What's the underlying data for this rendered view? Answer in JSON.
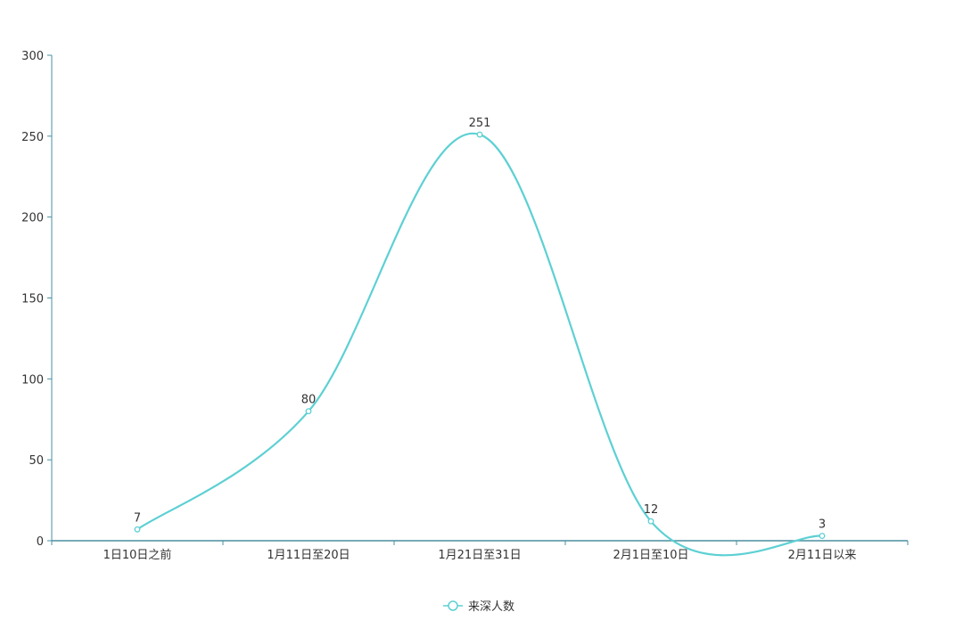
{
  "chart_data": {
    "type": "line",
    "smooth": true,
    "categories": [
      "1日10日之前",
      "1月11日至20日",
      "1月21日至31日",
      "2月1日至10日",
      "2月11日以来"
    ],
    "series": [
      {
        "name": "来深人数",
        "values": [
          7,
          80,
          251,
          12,
          3
        ],
        "color": "#5dd0d3"
      }
    ],
    "ylim": [
      0,
      300
    ],
    "yticks": [
      0,
      50,
      100,
      150,
      200,
      250,
      300
    ],
    "data_labels": true,
    "grid": false,
    "legend": "bottom-center",
    "axis_color": "#4a8fa0"
  }
}
